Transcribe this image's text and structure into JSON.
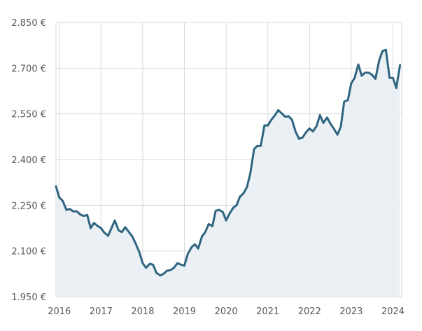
{
  "chart_data": {
    "type": "area",
    "y_unit": "€",
    "ylim": [
      1950,
      2850
    ],
    "y_ticks": [
      {
        "value": 1950,
        "label": "1.950 €"
      },
      {
        "value": 2100,
        "label": "2.100 €"
      },
      {
        "value": 2250,
        "label": "2.250 €"
      },
      {
        "value": 2400,
        "label": "2.400 €"
      },
      {
        "value": 2550,
        "label": "2.550 €"
      },
      {
        "value": 2700,
        "label": "2.700 €"
      },
      {
        "value": 2850,
        "label": "2.850 €"
      }
    ],
    "xlim": [
      2015.92,
      2024.21
    ],
    "x_ticks": [
      {
        "value": 2016,
        "label": "2016"
      },
      {
        "value": 2017,
        "label": "2017"
      },
      {
        "value": 2018,
        "label": "2018"
      },
      {
        "value": 2019,
        "label": "2019"
      },
      {
        "value": 2020,
        "label": "2020"
      },
      {
        "value": 2021,
        "label": "2021"
      },
      {
        "value": 2022,
        "label": "2022"
      },
      {
        "value": 2023,
        "label": "2023"
      },
      {
        "value": 2024,
        "label": "2024"
      }
    ],
    "grid": true,
    "colors": {
      "line": "#2f6580",
      "fill": "#e8edf2",
      "grid": "#d8dadd",
      "tick_text": "#555a60"
    },
    "series": [
      {
        "x": [
          2015.92,
          2016.0,
          2016.08,
          2016.17,
          2016.25,
          2016.33,
          2016.42,
          2016.5,
          2016.58,
          2016.67,
          2016.75,
          2016.83,
          2016.92,
          2017.0,
          2017.08,
          2017.17,
          2017.25,
          2017.33,
          2017.42,
          2017.5,
          2017.58,
          2017.67,
          2017.75,
          2017.83,
          2017.92,
          2018.0,
          2018.08,
          2018.17,
          2018.25,
          2018.33,
          2018.42,
          2018.5,
          2018.58,
          2018.67,
          2018.75,
          2018.83,
          2018.92,
          2019.0,
          2019.08,
          2019.17,
          2019.25,
          2019.33,
          2019.42,
          2019.5,
          2019.58,
          2019.67,
          2019.75,
          2019.83,
          2019.92,
          2020.0,
          2020.08,
          2020.17,
          2020.25,
          2020.33,
          2020.42,
          2020.5,
          2020.58,
          2020.67,
          2020.75,
          2020.83,
          2020.92,
          2021.0,
          2021.08,
          2021.17,
          2021.25,
          2021.33,
          2021.42,
          2021.5,
          2021.58,
          2021.67,
          2021.75,
          2021.83,
          2021.92,
          2022.0,
          2022.08,
          2022.17,
          2022.25,
          2022.33,
          2022.42,
          2022.5,
          2022.58,
          2022.67,
          2022.75,
          2022.83,
          2022.92,
          2023.0,
          2023.08,
          2023.17,
          2023.25,
          2023.33,
          2023.42,
          2023.5,
          2023.58,
          2023.67,
          2023.75,
          2023.83,
          2023.92,
          2024.0,
          2024.08,
          2024.17
        ],
        "y": [
          2312,
          2275,
          2265,
          2235,
          2238,
          2230,
          2230,
          2220,
          2215,
          2218,
          2175,
          2192,
          2182,
          2175,
          2160,
          2150,
          2175,
          2200,
          2168,
          2162,
          2178,
          2162,
          2148,
          2125,
          2095,
          2060,
          2045,
          2058,
          2055,
          2028,
          2020,
          2025,
          2035,
          2038,
          2045,
          2060,
          2055,
          2052,
          2090,
          2112,
          2122,
          2108,
          2148,
          2162,
          2188,
          2182,
          2232,
          2235,
          2228,
          2200,
          2222,
          2242,
          2250,
          2278,
          2290,
          2310,
          2355,
          2435,
          2445,
          2445,
          2512,
          2512,
          2530,
          2545,
          2562,
          2552,
          2540,
          2542,
          2530,
          2490,
          2468,
          2472,
          2490,
          2502,
          2492,
          2510,
          2546,
          2520,
          2538,
          2518,
          2502,
          2482,
          2508,
          2590,
          2595,
          2650,
          2668,
          2712,
          2675,
          2685,
          2685,
          2678,
          2665,
          2725,
          2756,
          2760,
          2668,
          2668,
          2635,
          2710
        ]
      }
    ]
  }
}
